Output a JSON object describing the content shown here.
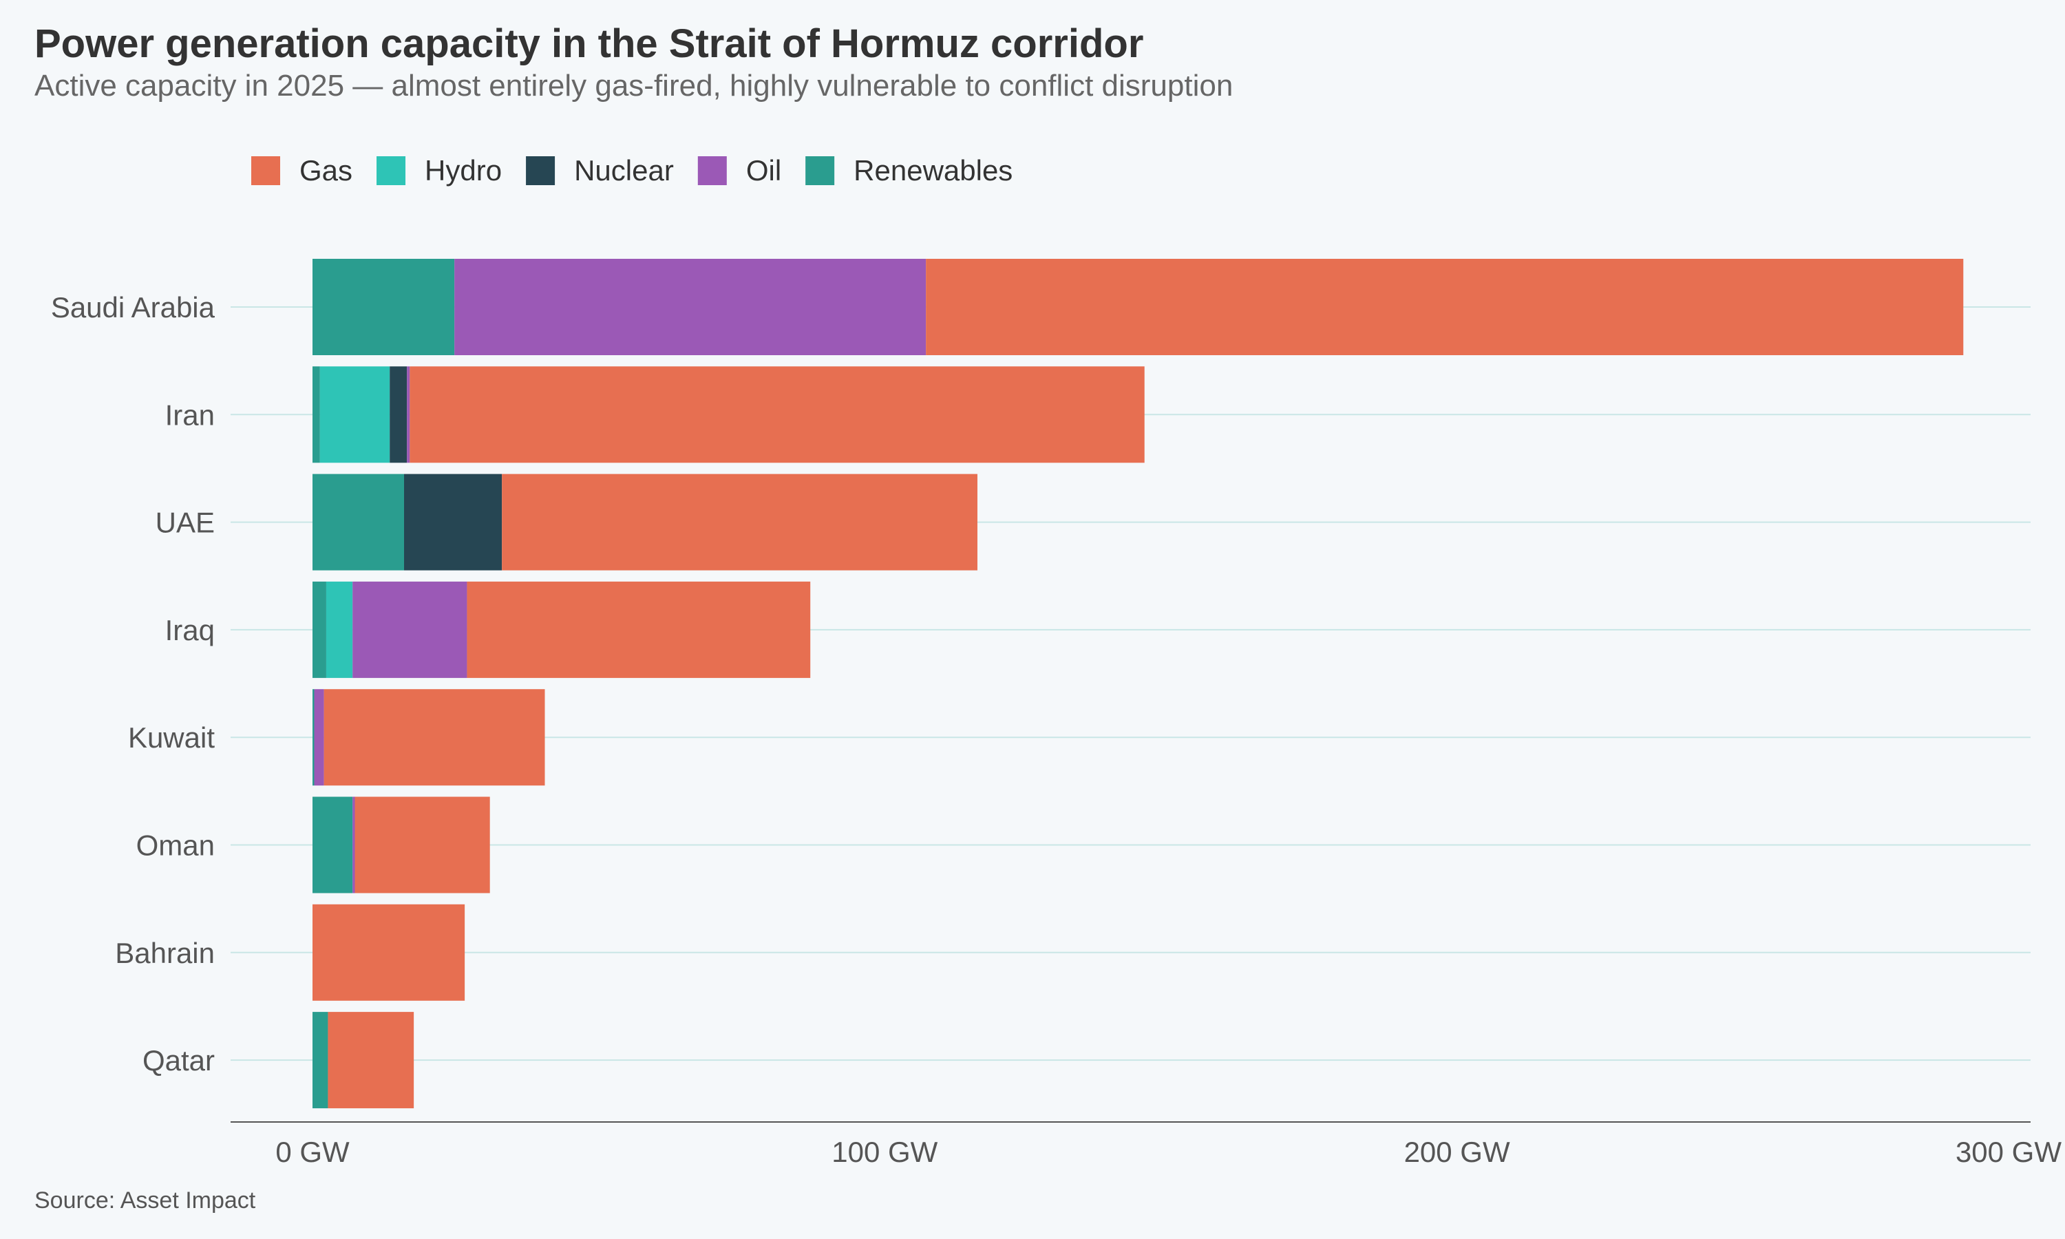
{
  "chart_data": {
    "type": "bar",
    "orientation": "horizontal",
    "stacked": true,
    "title": "Power generation capacity in the Strait of Hormuz corridor",
    "subtitle": "Active capacity in 2025 — almost entirely gas-fired, highly vulnerable to conflict disruption",
    "source": "Source: Asset Impact",
    "xlim": [
      0,
      300
    ],
    "x_ticks": [
      0,
      100,
      200,
      300
    ],
    "x_tick_labels": [
      "0 GW",
      "100 GW",
      "200 GW",
      "300 GW"
    ],
    "grid": true,
    "legend_position": "top-left",
    "categories": [
      "Saudi Arabia",
      "Iran",
      "UAE",
      "Iraq",
      "Kuwait",
      "Oman",
      "Bahrain",
      "Qatar"
    ],
    "stack_order": [
      "Renewables",
      "Hydro",
      "Nuclear",
      "Oil",
      "Gas"
    ],
    "series": [
      {
        "name": "Gas",
        "color": "#e76f51",
        "values": [
          181.3,
          128.4,
          83.1,
          60.0,
          38.6,
          23.6,
          26.6,
          15.0
        ]
      },
      {
        "name": "Hydro",
        "color": "#2ec4b6",
        "values": [
          0,
          12.2,
          0,
          4.6,
          0,
          0,
          0,
          0
        ]
      },
      {
        "name": "Nuclear",
        "color": "#264653",
        "values": [
          0,
          3.0,
          17.1,
          0,
          0,
          0,
          0,
          0
        ]
      },
      {
        "name": "Oil",
        "color": "#9b59b6",
        "values": [
          82.4,
          0.5,
          0,
          20.0,
          1.7,
          0.4,
          0,
          0
        ]
      },
      {
        "name": "Renewables",
        "color": "#2a9d8f",
        "values": [
          24.8,
          1.3,
          16.0,
          2.4,
          0.3,
          7.0,
          0,
          2.7
        ]
      }
    ]
  }
}
